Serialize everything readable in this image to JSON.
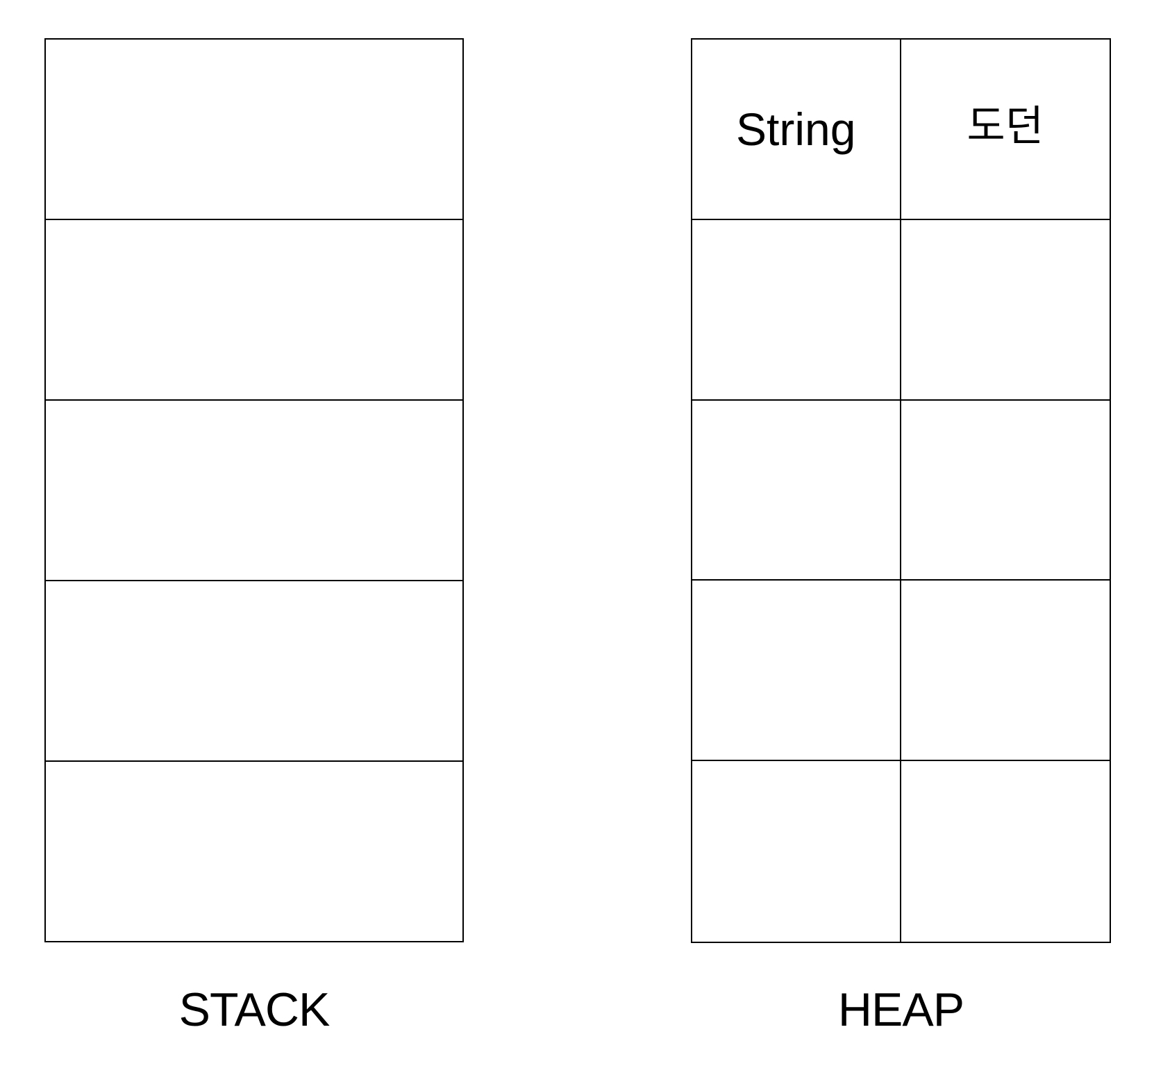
{
  "stack": {
    "label": "STACK",
    "cells": [
      "",
      "",
      "",
      "",
      ""
    ]
  },
  "heap": {
    "label": "HEAP",
    "rows": [
      [
        "String",
        "도던"
      ],
      [
        "",
        ""
      ],
      [
        "",
        ""
      ],
      [
        "",
        ""
      ],
      [
        "",
        ""
      ]
    ]
  }
}
